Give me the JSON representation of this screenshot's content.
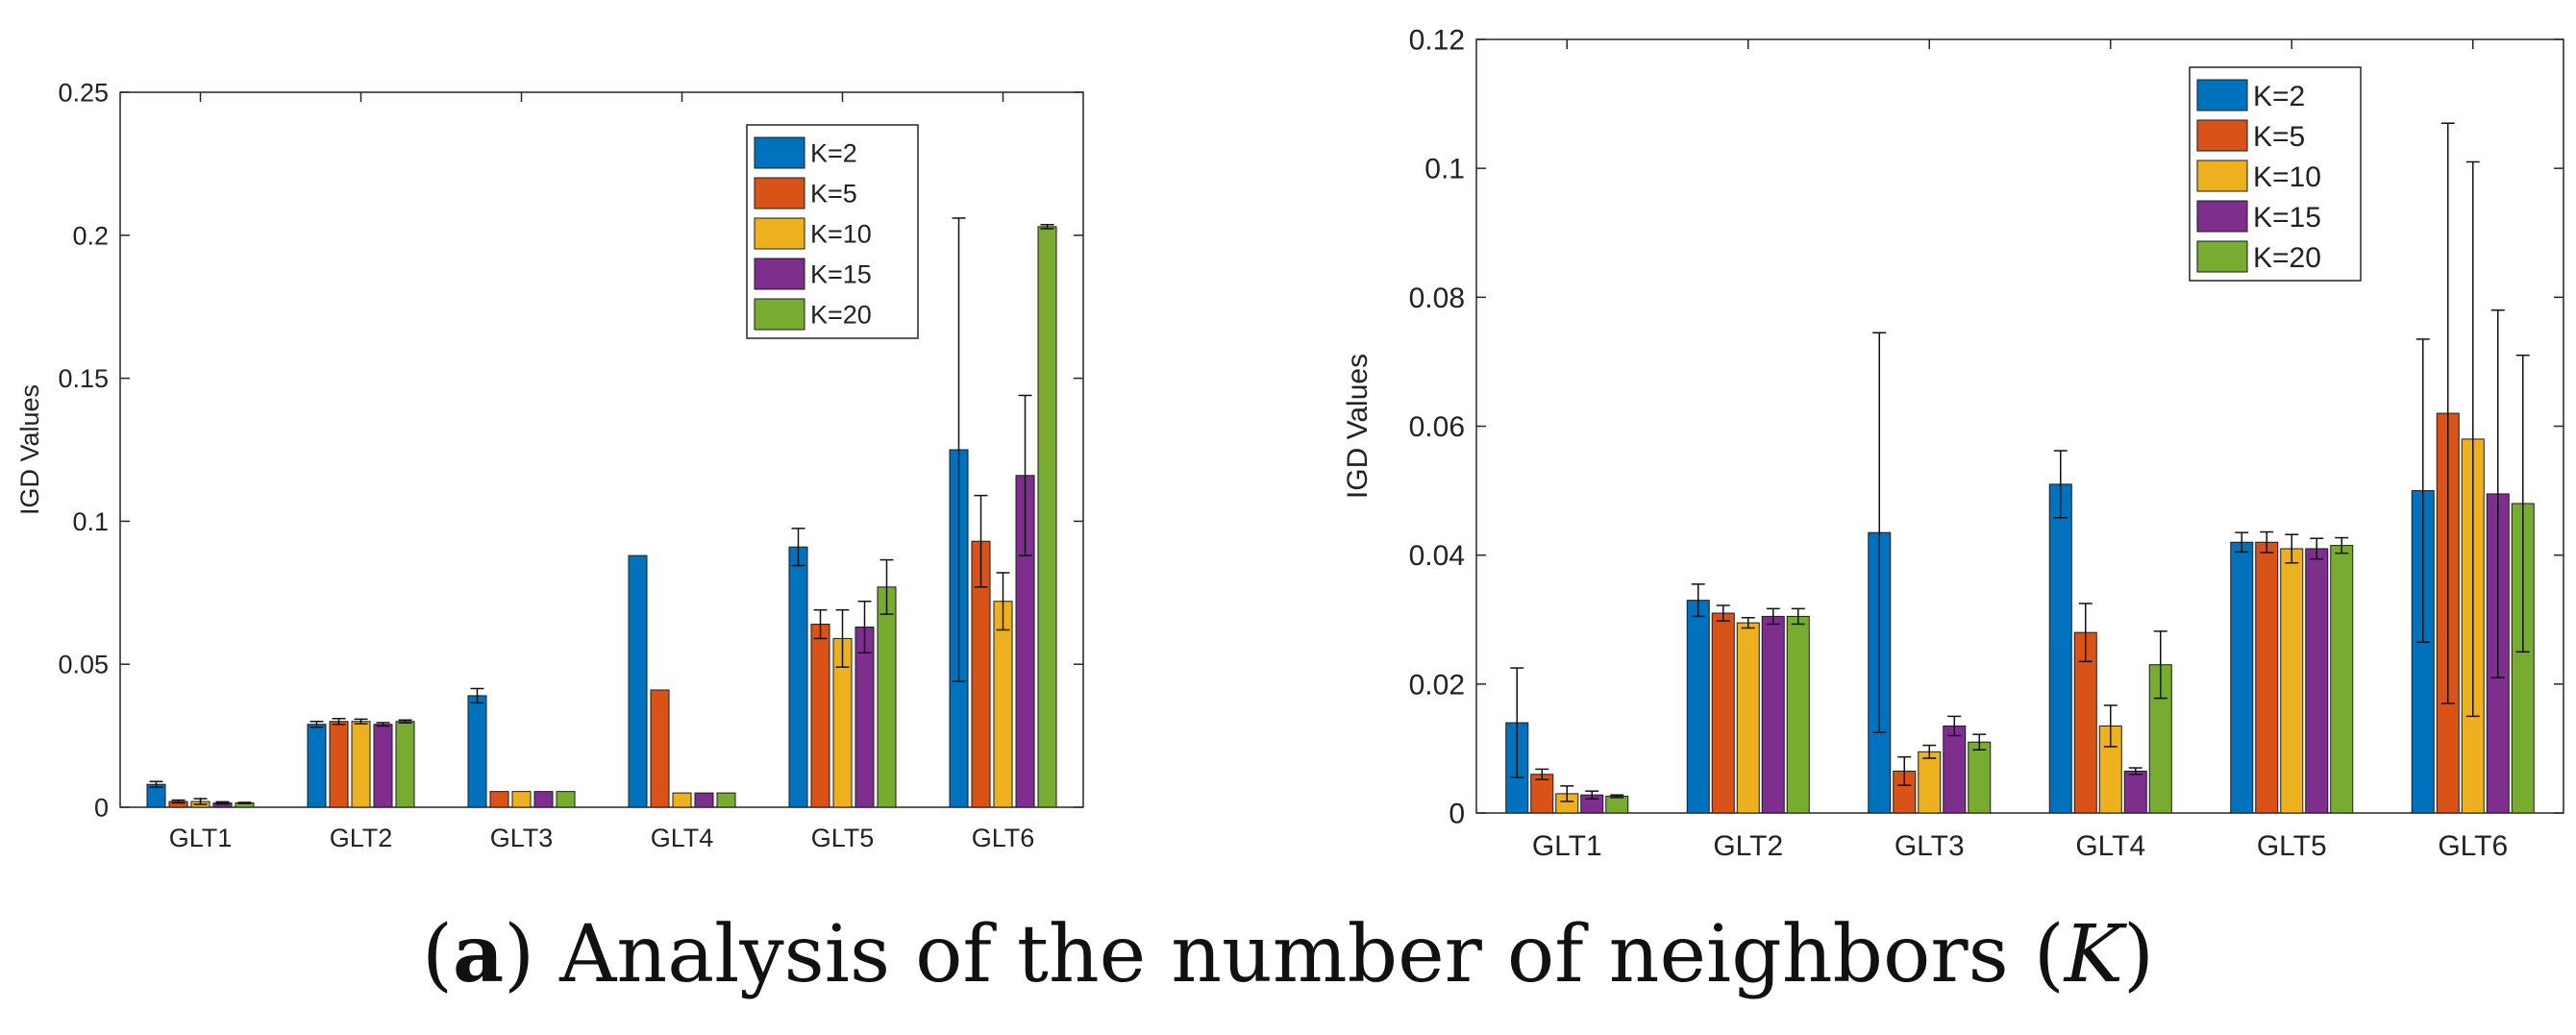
{
  "caption": {
    "open_paren": "(",
    "letter": "a",
    "text": ") Analysis of the number of neighbors (",
    "variable": "K",
    "close_paren": ")"
  },
  "colors": {
    "K=2": "#0072BD",
    "K=5": "#D95319",
    "K=10": "#EDB120",
    "K=15": "#7E2F8E",
    "K=20": "#77AC30"
  },
  "chart_data": [
    {
      "type": "bar",
      "title": "",
      "xlabel": "",
      "ylabel": "IGD Values",
      "ylim": [
        0,
        0.25
      ],
      "yticks": [
        0,
        0.05,
        0.1,
        0.15,
        0.2,
        0.25
      ],
      "ytick_labels": [
        "0",
        "0.05",
        "0.1",
        "0.15",
        "0.2",
        "0.25"
      ],
      "categories": [
        "GLT1",
        "GLT2",
        "GLT3",
        "GLT4",
        "GLT5",
        "GLT6"
      ],
      "legend": "top-right",
      "grid": false,
      "series": [
        {
          "name": "K=2",
          "values": [
            0.008,
            0.029,
            0.039,
            0.088,
            0.091,
            0.125
          ],
          "errors": [
            0.001,
            0.001,
            0.0025,
            0,
            0.0065,
            0.081
          ]
        },
        {
          "name": "K=5",
          "values": [
            0.002,
            0.03,
            0.0055,
            0.041,
            0.064,
            0.093
          ],
          "errors": [
            0.0005,
            0.001,
            0,
            0,
            0.005,
            0.016
          ]
        },
        {
          "name": "K=10",
          "values": [
            0.002,
            0.03,
            0.0055,
            0.005,
            0.059,
            0.072
          ],
          "errors": [
            0.001,
            0.0008,
            0,
            0,
            0.01,
            0.01
          ]
        },
        {
          "name": "K=15",
          "values": [
            0.0015,
            0.029,
            0.0055,
            0.005,
            0.063,
            0.116
          ],
          "errors": [
            0.0004,
            0.0006,
            0,
            0,
            0.009,
            0.028
          ]
        },
        {
          "name": "K=20",
          "values": [
            0.0015,
            0.03,
            0.0055,
            0.005,
            0.077,
            0.203
          ],
          "errors": [
            0.0002,
            0.0005,
            0,
            0,
            0.0095,
            0.0007
          ]
        }
      ]
    },
    {
      "type": "bar",
      "title": "",
      "xlabel": "",
      "ylabel": "IGD Values",
      "ylim": [
        0,
        0.12
      ],
      "yticks": [
        0,
        0.02,
        0.04,
        0.06,
        0.08,
        0.1,
        0.12
      ],
      "ytick_labels": [
        "0",
        "0.02",
        "0.04",
        "0.06",
        "0.08",
        "0.1",
        "0.12"
      ],
      "categories": [
        "GLT1",
        "GLT2",
        "GLT3",
        "GLT4",
        "GLT5",
        "GLT6"
      ],
      "legend": "top-right",
      "grid": false,
      "series": [
        {
          "name": "K=2",
          "values": [
            0.014,
            0.033,
            0.0435,
            0.051,
            0.042,
            0.05
          ],
          "errors": [
            0.0085,
            0.0025,
            0.031,
            0.0052,
            0.0015,
            0.0235
          ]
        },
        {
          "name": "K=5",
          "values": [
            0.006,
            0.031,
            0.0065,
            0.028,
            0.042,
            0.062
          ],
          "errors": [
            0.0008,
            0.0012,
            0.0022,
            0.0045,
            0.0016,
            0.045
          ]
        },
        {
          "name": "K=10",
          "values": [
            0.003,
            0.0295,
            0.0095,
            0.0135,
            0.041,
            0.058
          ],
          "errors": [
            0.0012,
            0.0008,
            0.001,
            0.0032,
            0.0022,
            0.043
          ]
        },
        {
          "name": "K=15",
          "values": [
            0.0028,
            0.0305,
            0.0135,
            0.0065,
            0.041,
            0.0495
          ],
          "errors": [
            0.0006,
            0.0012,
            0.0015,
            0.0005,
            0.0016,
            0.0285
          ]
        },
        {
          "name": "K=20",
          "values": [
            0.0026,
            0.0305,
            0.011,
            0.023,
            0.0415,
            0.048
          ],
          "errors": [
            0.0002,
            0.0012,
            0.0012,
            0.0052,
            0.0012,
            0.023
          ]
        }
      ]
    }
  ]
}
